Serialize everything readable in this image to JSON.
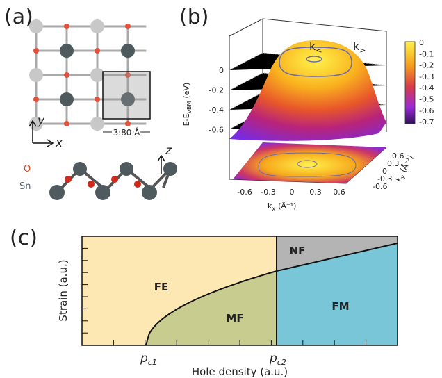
{
  "panels": {
    "a": {
      "label": "(a)",
      "axis_y": "y",
      "axis_x": "x",
      "axis_z": "z",
      "lattice_constant": "3.80 Å",
      "atom_o": "O",
      "atom_sn": "Sn"
    },
    "b": {
      "label": "(b)",
      "k_less": {
        "base": "k",
        "sub": "<"
      },
      "k_greater": {
        "base": "k",
        "sub": ">"
      },
      "energy_label": {
        "base": "E-E",
        "sub": "VBM",
        "unit": "(eV)"
      },
      "energy_ticks": [
        "0",
        "-0.2",
        "-0.4",
        "-0.6"
      ],
      "colorbar_ticks": [
        "0",
        "-0.1",
        "-0.2",
        "-0.3",
        "-0.4",
        "-0.5",
        "-0.6",
        "-0.7"
      ],
      "kx_label": {
        "base": "k",
        "sub": "x",
        "unit": "(Å⁻¹)"
      },
      "kx_ticks": [
        "-0.6",
        "-0.3",
        "0",
        "0.3",
        "0.6"
      ],
      "ky_label": {
        "base": "k",
        "sub": "y",
        "unit": "(Å⁻¹)"
      },
      "ky_ticks": [
        "0.6",
        "0.3",
        "0",
        "-0.3",
        "-0.6"
      ]
    },
    "c": {
      "label": "(c)",
      "regions": [
        "FE",
        "MF",
        "NF",
        "FM"
      ],
      "y_label": "Strain (a.u.)",
      "x_label": "Hole density (a.u.)",
      "pc1": {
        "base": "p",
        "sub": "c1"
      },
      "pc2": {
        "base": "p",
        "sub": "c2"
      }
    }
  }
}
